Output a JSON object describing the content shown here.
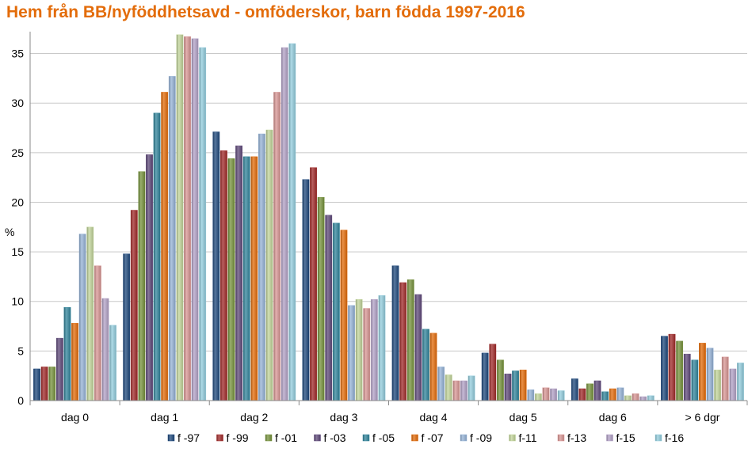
{
  "chart_data": {
    "type": "bar",
    "title": "Hem från BB/nyföddhetsavd - omföderskor, barn födda 1997-2016",
    "ylabel": "%",
    "xlabel": "",
    "ylim": [
      0,
      35
    ],
    "yticks": [
      0,
      5,
      10,
      15,
      20,
      25,
      30,
      35
    ],
    "grid": true,
    "legend": "bottom",
    "categories": [
      "dag 0",
      "dag 1",
      "dag 2",
      "dag 3",
      "dag 4",
      "dag 5",
      "dag 6",
      "> 6 dgr"
    ],
    "series": [
      {
        "name": "f -97",
        "color": "#1f497d",
        "values": [
          3.2,
          14.8,
          27.1,
          22.3,
          13.6,
          4.8,
          2.2,
          6.5
        ]
      },
      {
        "name": "f -99",
        "color": "#a12a29",
        "values": [
          3.4,
          19.2,
          25.2,
          23.5,
          11.9,
          5.7,
          1.2,
          6.7
        ]
      },
      {
        "name": "f -01",
        "color": "#77933c",
        "values": [
          3.4,
          23.1,
          24.4,
          20.5,
          12.2,
          4.1,
          1.7,
          6.0
        ]
      },
      {
        "name": "f -03",
        "color": "#5f497a",
        "values": [
          6.3,
          24.8,
          25.7,
          18.7,
          10.7,
          2.7,
          2.0,
          4.7
        ]
      },
      {
        "name": "f -05",
        "color": "#31859c",
        "values": [
          9.4,
          29.0,
          24.6,
          17.9,
          7.2,
          3.0,
          0.9,
          4.1
        ]
      },
      {
        "name": "f -07",
        "color": "#e46c0a",
        "values": [
          7.8,
          31.1,
          24.6,
          17.2,
          6.8,
          3.1,
          1.2,
          5.8
        ]
      },
      {
        "name": "f -09",
        "color": "#95b3d7",
        "values": [
          16.8,
          32.7,
          26.9,
          9.6,
          3.4,
          1.1,
          1.3,
          5.3
        ]
      },
      {
        "name": "f-11",
        "color": "#c3d69b",
        "values": [
          17.5,
          36.9,
          27.3,
          10.2,
          2.6,
          0.7,
          0.5,
          3.1
        ]
      },
      {
        "name": "f-13",
        "color": "#d99694",
        "values": [
          13.6,
          36.7,
          31.1,
          9.3,
          2.0,
          1.3,
          0.7,
          4.4
        ]
      },
      {
        "name": "f-15",
        "color": "#b3a2c7",
        "values": [
          10.3,
          36.5,
          35.6,
          10.2,
          2.0,
          1.2,
          0.4,
          3.2
        ]
      },
      {
        "name": "f-16",
        "color": "#93cddd",
        "values": [
          7.6,
          35.6,
          36.0,
          10.6,
          2.5,
          1.0,
          0.5,
          3.8
        ]
      }
    ]
  }
}
